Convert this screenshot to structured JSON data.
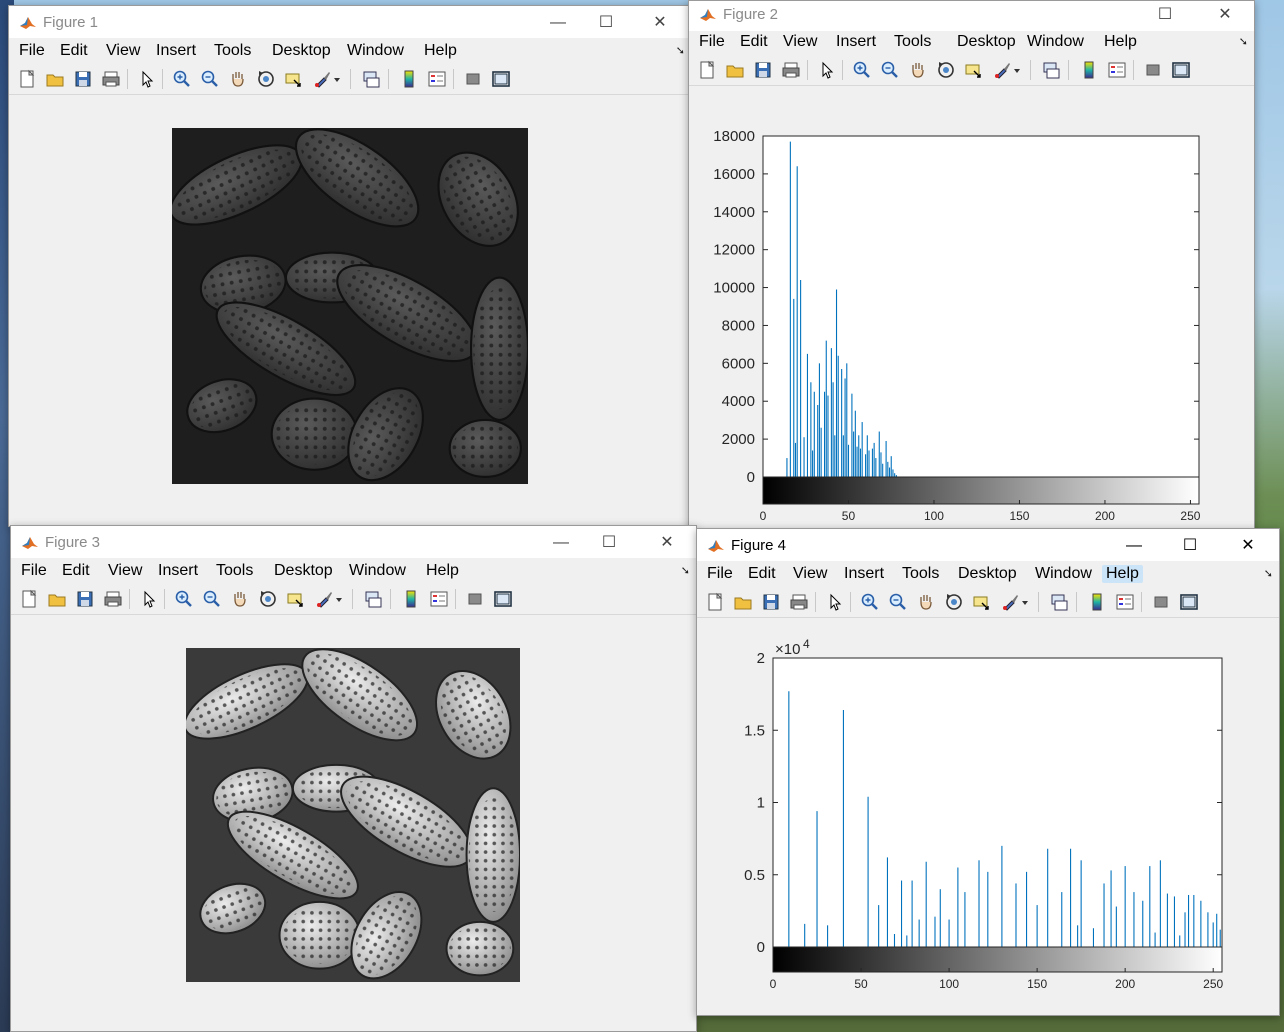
{
  "menus": [
    "File",
    "Edit",
    "View",
    "Insert",
    "Tools",
    "Desktop",
    "Window",
    "Help"
  ],
  "toolbar_icons": [
    "new-figure-icon",
    "open-file-icon",
    "save-icon",
    "print-icon",
    "select-arrow-icon",
    "zoom-in-icon",
    "zoom-out-icon",
    "pan-hand-icon",
    "rotate-3d-icon",
    "data-cursor-icon",
    "brush-icon",
    "link-plot-icon",
    "colorbar-icon",
    "legend-icon",
    "hide-plot-tools-icon",
    "show-plot-tools-icon"
  ],
  "accent_color": "#0072bd",
  "windows": [
    {
      "id": "fig1",
      "title": "Figure 1",
      "active": false
    },
    {
      "id": "fig2",
      "title": "Figure 2",
      "active": false
    },
    {
      "id": "fig3",
      "title": "Figure 3",
      "active": false
    },
    {
      "id": "fig4",
      "title": "Figure 4",
      "active": true,
      "hover_menu": "Help"
    }
  ],
  "controls": {
    "minimize": "—",
    "maximize": "☐",
    "close": "✕"
  },
  "chart_data": [
    {
      "window": "Figure 2",
      "type": "bar",
      "title": "",
      "xlabel": "",
      "ylabel": "",
      "xlim": [
        0,
        255
      ],
      "ylim": [
        0,
        18000
      ],
      "yticks": [
        "0",
        "2000",
        "4000",
        "6000",
        "8000",
        "10000",
        "12000",
        "14000",
        "16000",
        "18000"
      ],
      "xticks": [
        "0",
        "50",
        "100",
        "150",
        "200",
        "250"
      ],
      "exponent": "",
      "colorbar": "grayscale 0-255",
      "series": [
        {
          "x": [
            14,
            16,
            18,
            19,
            20,
            22,
            24,
            26,
            28,
            29,
            30,
            32,
            33,
            34,
            36,
            37,
            38,
            40,
            41,
            42,
            43,
            44,
            46,
            47,
            48,
            49,
            50,
            52,
            53,
            54,
            55,
            56,
            57,
            58,
            60,
            61,
            62,
            64,
            65,
            66,
            68,
            69,
            70,
            72,
            73,
            74,
            75,
            76,
            77,
            78
          ],
          "values": [
            1000,
            17700,
            9400,
            1800,
            16400,
            10400,
            2100,
            6500,
            5000,
            1400,
            4500,
            3800,
            6000,
            2600,
            4500,
            7200,
            4300,
            6800,
            5000,
            2200,
            9900,
            6400,
            5700,
            2200,
            5200,
            6000,
            1700,
            4400,
            2400,
            3500,
            1600,
            2200,
            1500,
            2900,
            1200,
            2200,
            1400,
            1500,
            1800,
            1000,
            2400,
            1300,
            700,
            1900,
            800,
            500,
            1100,
            400,
            200,
            100
          ]
        }
      ]
    },
    {
      "window": "Figure 4",
      "type": "bar",
      "title": "",
      "xlabel": "",
      "ylabel": "",
      "xlim": [
        0,
        255
      ],
      "ylim": [
        0,
        20000
      ],
      "yticks": [
        "0",
        "0.5",
        "1",
        "1.5",
        "2"
      ],
      "xticks": [
        "0",
        "50",
        "100",
        "150",
        "200",
        "250"
      ],
      "exponent": "×10",
      "exponent_power": "4",
      "colorbar": "grayscale 0-255",
      "series": [
        {
          "x": [
            9,
            18,
            25,
            31,
            40,
            54,
            60,
            65,
            69,
            73,
            76,
            79,
            83,
            87,
            92,
            95,
            100,
            105,
            109,
            117,
            122,
            130,
            138,
            144,
            150,
            156,
            164,
            169,
            173,
            175,
            182,
            188,
            192,
            195,
            200,
            205,
            210,
            214,
            217,
            220,
            224,
            228,
            231,
            234,
            236,
            239,
            243,
            247,
            250,
            252,
            254
          ],
          "values": [
            17700,
            1600,
            9400,
            1500,
            16400,
            10400,
            2900,
            6200,
            900,
            4600,
            800,
            4600,
            1900,
            5900,
            2100,
            4000,
            1900,
            5500,
            3800,
            6000,
            5200,
            7000,
            4400,
            5200,
            2900,
            6800,
            3800,
            6800,
            1500,
            6000,
            1300,
            4400,
            5300,
            2800,
            5600,
            3800,
            3200,
            5600,
            1000,
            6000,
            3700,
            3500,
            800,
            2400,
            3600,
            3600,
            3200,
            2400,
            1700,
            2300,
            1200
          ]
        }
      ]
    }
  ]
}
